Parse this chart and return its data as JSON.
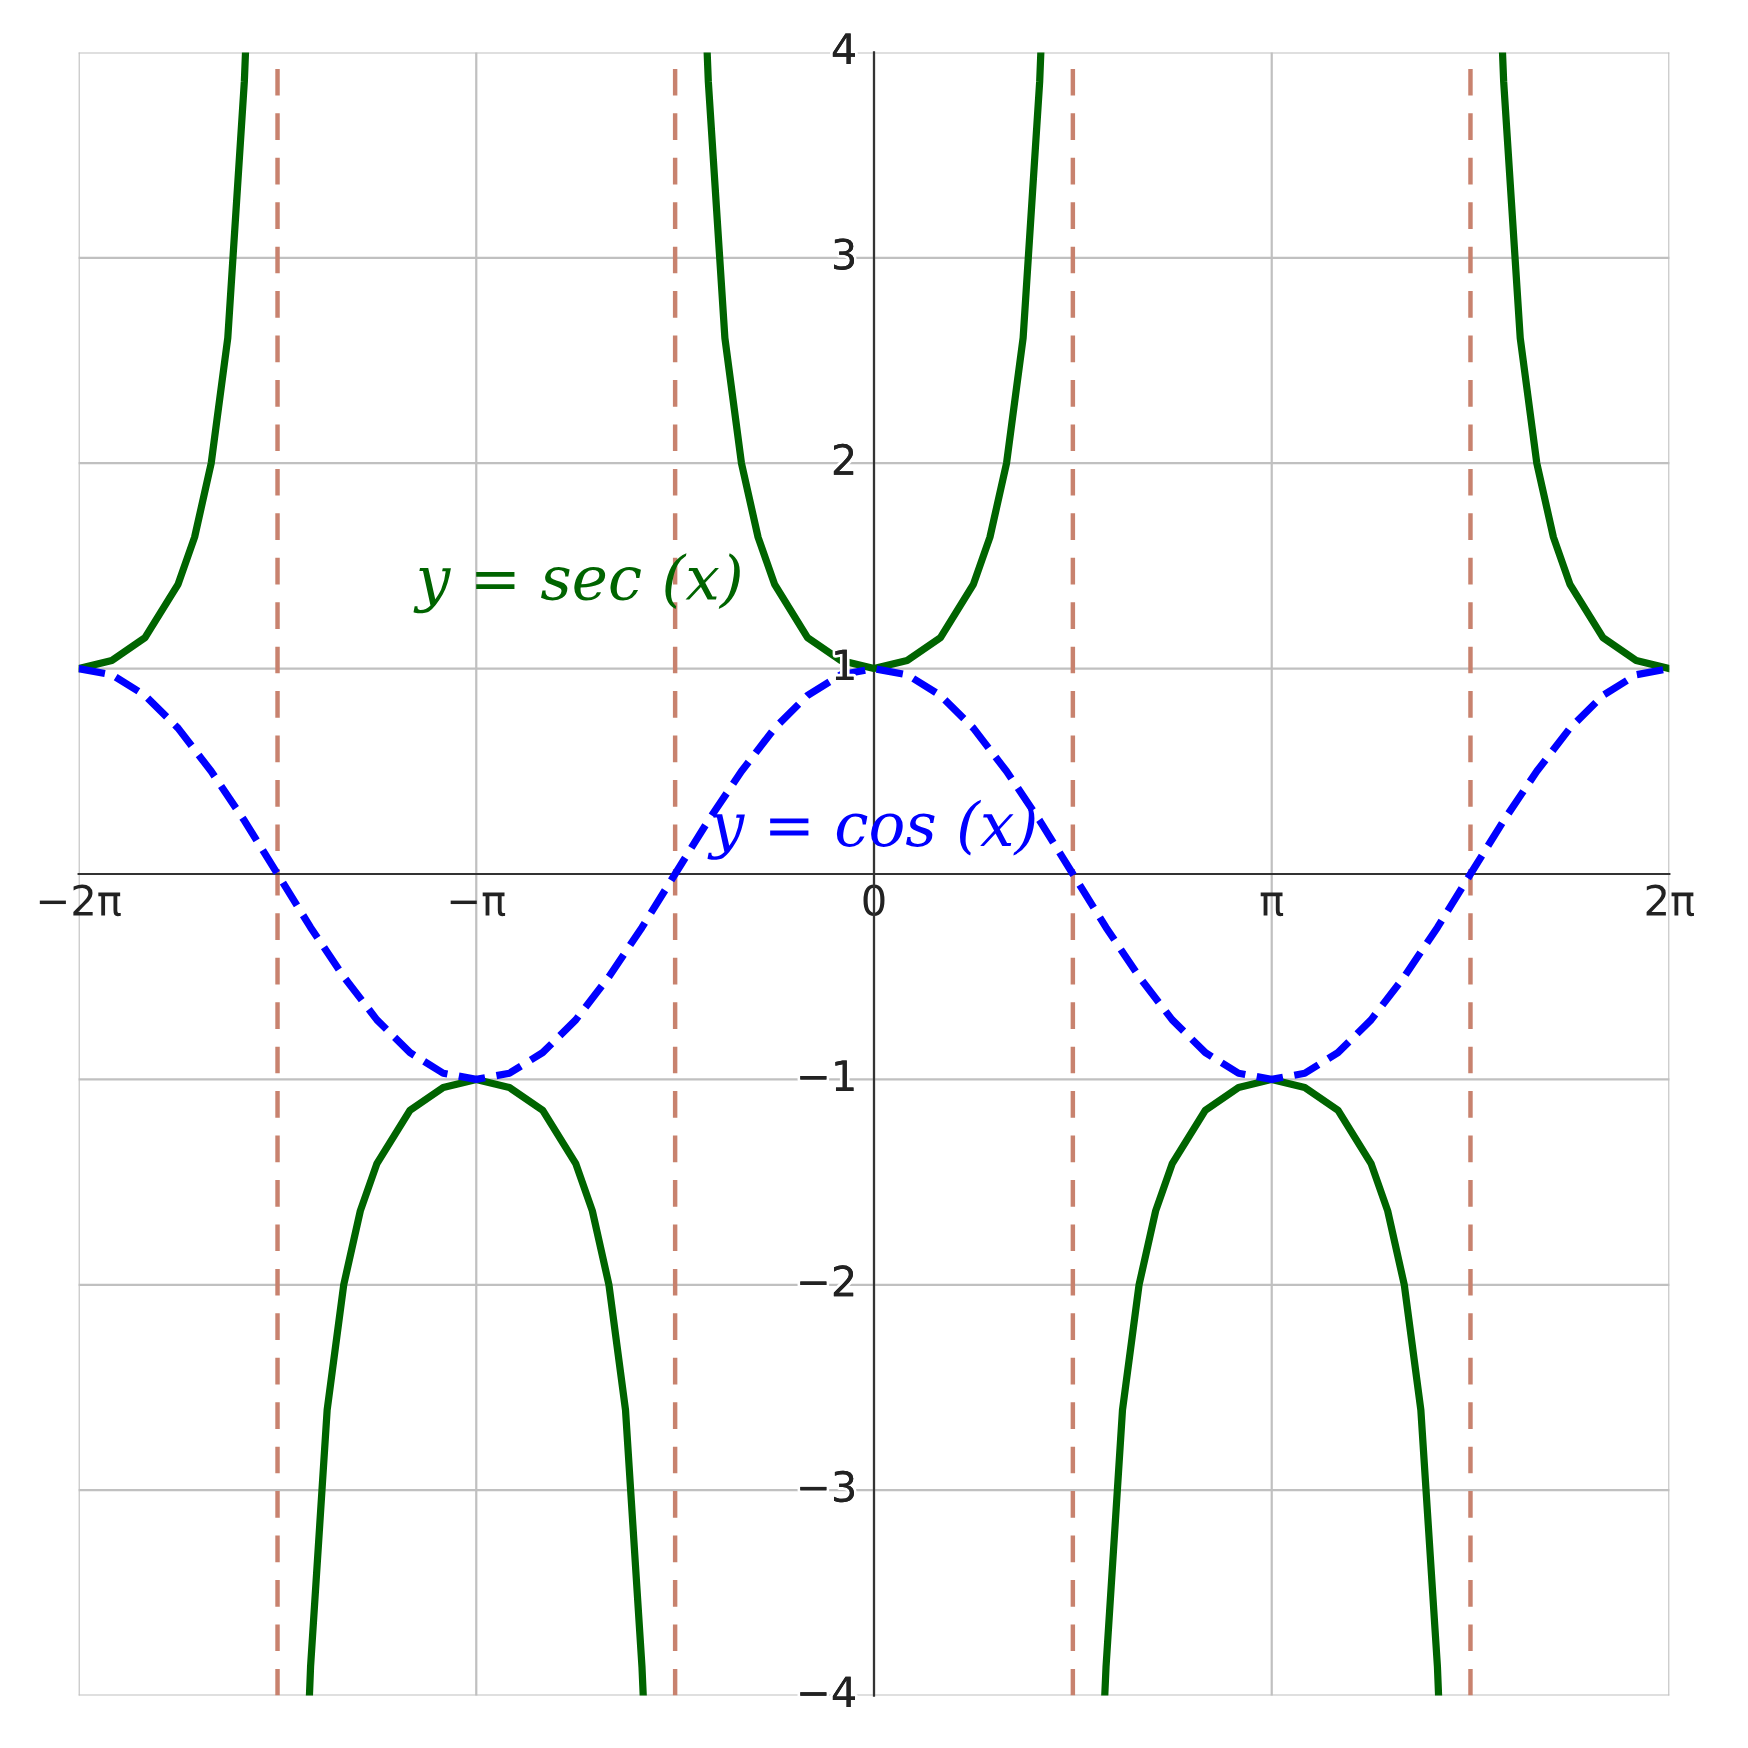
{
  "chart_data": {
    "type": "line",
    "xlim": [
      -6.283,
      6.283
    ],
    "ylim": [
      -4,
      4
    ],
    "xticks": [
      {
        "value": -6.283,
        "label": "−2π"
      },
      {
        "value": -3.142,
        "label": "−π"
      },
      {
        "value": 0,
        "label": "0"
      },
      {
        "value": 3.142,
        "label": "π"
      },
      {
        "value": 6.283,
        "label": "2π"
      }
    ],
    "yticks": [
      {
        "value": -4,
        "label": "−4"
      },
      {
        "value": -3,
        "label": "−3"
      },
      {
        "value": -2,
        "label": "−2"
      },
      {
        "value": -1,
        "label": "−1"
      },
      {
        "value": 0,
        "label": null
      },
      1,
      2,
      3,
      4
    ],
    "grid": true,
    "legend": false,
    "marker": "none",
    "ref_lines": [
      {
        "axis": "x",
        "value": -4.712,
        "color": "#c8826e",
        "line_style": "dashed"
      },
      {
        "axis": "x",
        "value": -1.571,
        "color": "#c8826e",
        "line_style": "dashed"
      },
      {
        "axis": "x",
        "value": 1.571,
        "color": "#c8826e",
        "line_style": "dashed"
      },
      {
        "axis": "x",
        "value": 4.712,
        "color": "#c8826e",
        "line_style": "dashed"
      }
    ],
    "series": [
      {
        "name": "y = sec (x)",
        "color": "#006400",
        "line_style": "solid",
        "x": [
          -6.283,
          -6.021,
          -5.76,
          -5.498,
          -5.367,
          -5.236,
          -5.105,
          -4.974,
          -4.965,
          -4.712,
          -4.46,
          -4.451,
          -4.32,
          -4.189,
          -4.058,
          -3.927,
          -3.665,
          -3.403,
          -3.142,
          -2.88,
          -2.618,
          -2.356,
          -2.225,
          -2.094,
          -1.963,
          -1.833,
          -1.823,
          -1.571,
          -1.318,
          -1.309,
          -1.178,
          -1.047,
          -0.916,
          -0.785,
          -0.524,
          -0.262,
          0,
          0.262,
          0.524,
          0.785,
          0.916,
          1.047,
          1.178,
          1.309,
          1.318,
          1.571,
          1.823,
          1.833,
          1.963,
          2.094,
          2.225,
          2.356,
          2.618,
          2.88,
          3.142,
          3.403,
          3.665,
          3.927,
          4.058,
          4.189,
          4.32,
          4.451,
          4.46,
          4.712,
          4.965,
          4.974,
          5.105,
          5.236,
          5.367,
          5.498,
          5.76,
          6.021,
          6.283
        ],
        "values": [
          1,
          1.04,
          1.15,
          1.41,
          1.64,
          2,
          2.61,
          3.86,
          4,
          null,
          -4,
          -3.86,
          -2.61,
          -2,
          -1.64,
          -1.41,
          -1.15,
          -1.04,
          -1,
          -1.04,
          -1.15,
          -1.41,
          -1.64,
          -2,
          -2.61,
          -3.86,
          -4,
          null,
          4,
          3.86,
          2.61,
          2,
          1.64,
          1.41,
          1.15,
          1.04,
          1,
          1.04,
          1.15,
          1.41,
          1.64,
          2,
          2.61,
          3.86,
          4,
          null,
          -4,
          -3.86,
          -2.61,
          -2,
          -1.64,
          -1.41,
          -1.15,
          -1.04,
          -1,
          -1.04,
          -1.15,
          -1.41,
          -1.64,
          -2,
          -2.61,
          -3.86,
          -4,
          null,
          4,
          3.86,
          2.61,
          2,
          1.64,
          1.41,
          1.15,
          1.04,
          1
        ]
      },
      {
        "name": "y = cos (x)",
        "color": "#0000ff",
        "line_style": "dashed",
        "x": [
          -6.283,
          -6.021,
          -5.76,
          -5.498,
          -5.236,
          -4.974,
          -4.712,
          -4.451,
          -4.189,
          -3.927,
          -3.665,
          -3.403,
          -3.142,
          -2.88,
          -2.618,
          -2.356,
          -2.094,
          -1.833,
          -1.571,
          -1.309,
          -1.047,
          -0.785,
          -0.524,
          -0.262,
          0,
          0.262,
          0.524,
          0.785,
          1.047,
          1.309,
          1.571,
          1.833,
          2.094,
          2.356,
          2.618,
          2.88,
          3.142,
          3.403,
          3.665,
          3.927,
          4.189,
          4.451,
          4.712,
          4.974,
          5.236,
          5.498,
          5.76,
          6.021,
          6.283
        ],
        "values": [
          1,
          0.97,
          0.87,
          0.71,
          0.5,
          0.26,
          0,
          -0.26,
          -0.5,
          -0.71,
          -0.87,
          -0.97,
          -1,
          -0.97,
          -0.87,
          -0.71,
          -0.5,
          -0.26,
          0,
          0.26,
          0.5,
          0.71,
          0.87,
          0.97,
          1,
          0.97,
          0.87,
          0.71,
          0.5,
          0.26,
          0,
          -0.26,
          -0.5,
          -0.71,
          -0.87,
          -0.97,
          -1,
          -0.97,
          -0.87,
          -0.71,
          -0.5,
          -0.26,
          0,
          0.26,
          0.5,
          0.71,
          0.87,
          0.97,
          1
        ]
      }
    ]
  }
}
